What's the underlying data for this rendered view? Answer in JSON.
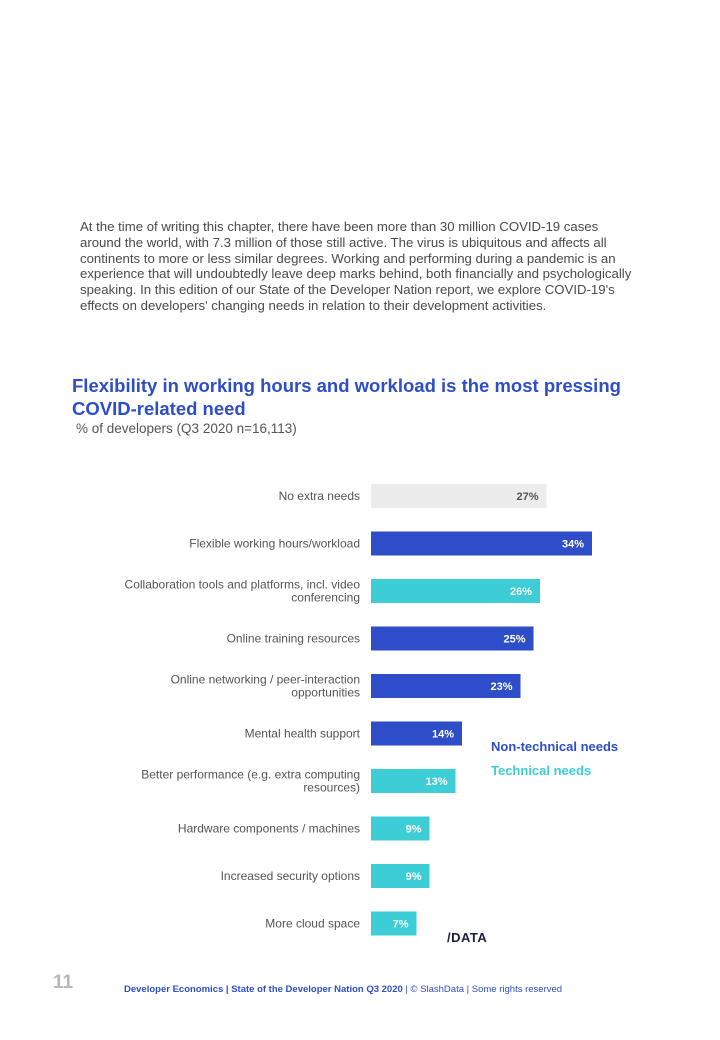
{
  "intro_text": "At the time of writing this chapter, there have been more than 30 million COVID-19 cases around the world, with 7.3 million of those still active. The virus is ubiquitous and affects all continents to more or less similar degrees. Working and performing during a pandemic is an experience that will undoubtedly leave deep marks behind, both financially and psychologically speaking. In this edition of our State of the Developer Nation report, we explore COVID-19's effects on developers' changing needs in relation to their development activities.",
  "chart_data": {
    "type": "bar",
    "orientation": "horizontal",
    "title": "Flexibility in working hours and workload is the most pressing COVID-related need",
    "subtitle": "% of developers (Q3 2020 n=16,113)",
    "unit": "%",
    "categories": [
      [
        "No extra needs"
      ],
      [
        "Flexible working hours/workload"
      ],
      [
        "Collaboration tools and platforms, incl. video",
        "conferencing"
      ],
      [
        "Online training resources"
      ],
      [
        "Online networking / peer-interaction",
        "opportunities"
      ],
      [
        "Mental health support"
      ],
      [
        "Better performance (e.g. extra computing",
        "resources)"
      ],
      [
        "Hardware components / machines"
      ],
      [
        "Increased security options"
      ],
      [
        "More cloud space"
      ]
    ],
    "values": [
      27,
      34,
      26,
      25,
      23,
      14,
      13,
      9,
      9,
      7
    ],
    "value_labels": [
      "27%",
      "34%",
      "26%",
      "25%",
      "23%",
      "14%",
      "13%",
      "9%",
      "9%",
      "7%"
    ],
    "groups": [
      "none",
      "non-technical",
      "technical",
      "non-technical",
      "non-technical",
      "non-technical",
      "technical",
      "technical",
      "technical",
      "technical"
    ],
    "colors": {
      "none": "#ececec",
      "non-technical": "#2d4ec8",
      "technical": "#3ccdd7",
      "none_label": "#555555",
      "bar_label": "#ffffff"
    },
    "legend": [
      {
        "name": "Non-technical needs",
        "color": "#2d4ec8"
      },
      {
        "name": "Technical needs",
        "color": "#3ccdd7"
      }
    ],
    "legend_position": "right",
    "grid": false
  },
  "logo_text": "/DATA",
  "page_number": "11",
  "footer": {
    "part1": "Developer Economics | State of the Developer Nation Q3 2020",
    "sep": " | ",
    "part2": "© SlashData",
    "part3": "Some rights reserved"
  }
}
